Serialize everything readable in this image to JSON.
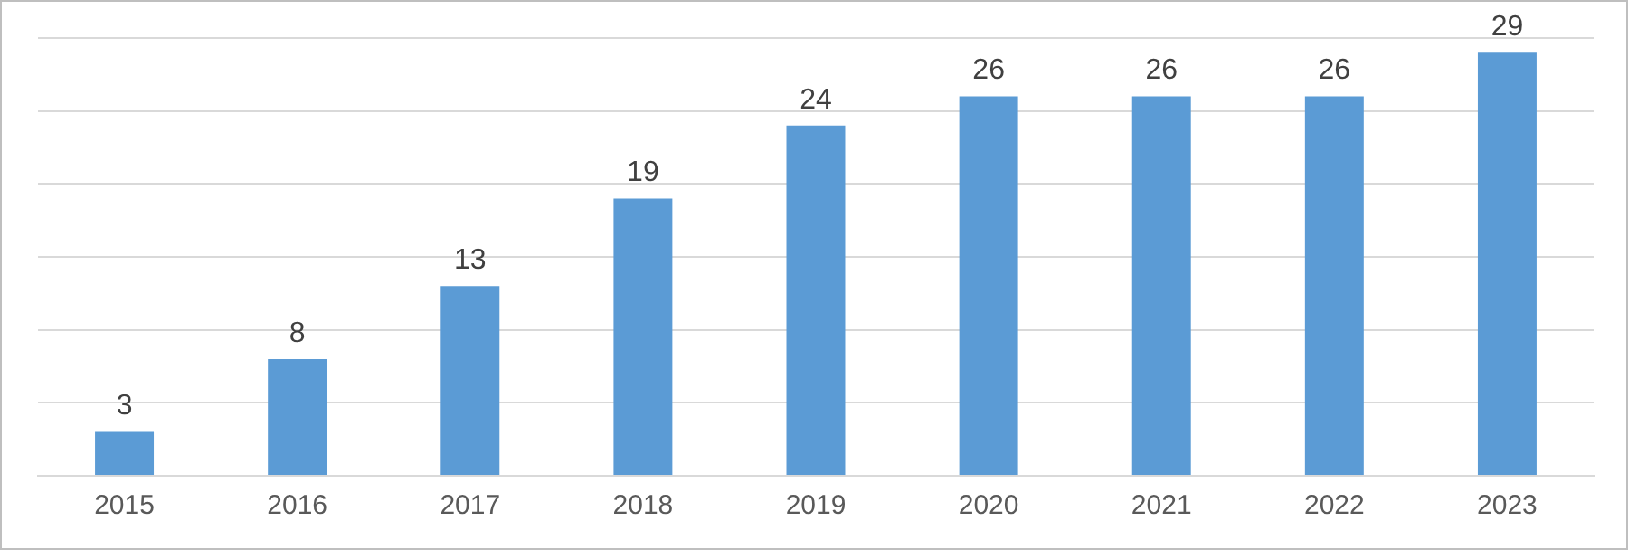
{
  "chart_data": {
    "type": "bar",
    "categories": [
      "2015",
      "2016",
      "2017",
      "2018",
      "2019",
      "2020",
      "2021",
      "2022",
      "2023"
    ],
    "values": [
      3,
      8,
      13,
      19,
      24,
      26,
      26,
      26,
      29
    ],
    "color": "#5b9bd5",
    "data_labels": true,
    "ylim": [
      0,
      30
    ],
    "yticks": [
      {
        "value": 0,
        "label": null
      },
      {
        "value": 5,
        "label": null
      },
      {
        "value": 10,
        "label": null
      },
      {
        "value": 15,
        "label": null
      },
      {
        "value": 20,
        "label": null
      },
      {
        "value": 25,
        "label": null
      },
      {
        "value": 30,
        "label": null
      }
    ],
    "grid": "y",
    "tick_labels": "x",
    "legend": false
  }
}
